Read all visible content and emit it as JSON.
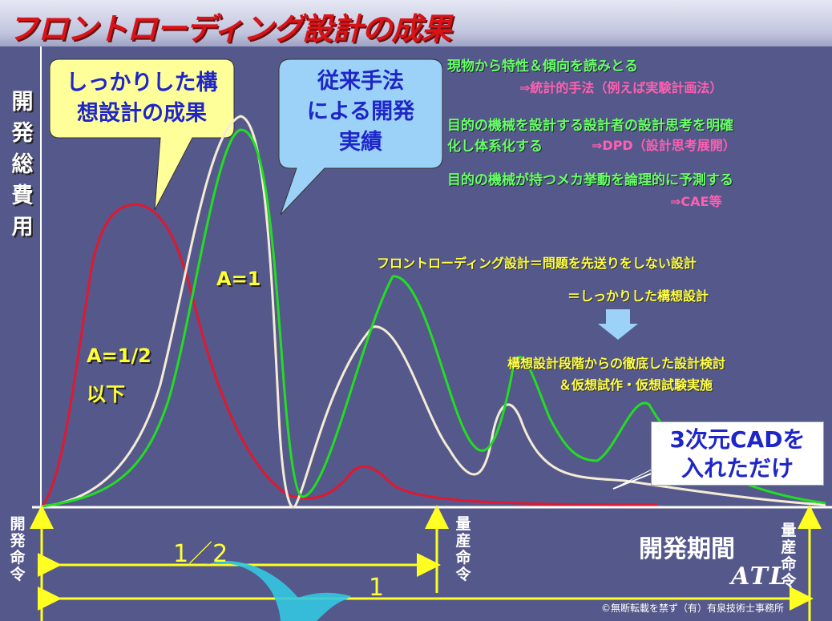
{
  "title": "フロントローディング設計の成果",
  "y_axis_label": [
    "開",
    "発",
    "総",
    "費",
    "用"
  ],
  "x_axis_label": "開発期間",
  "markers": {
    "dev_order": [
      "開",
      "発",
      "命",
      "令"
    ],
    "mass_production_order_1": [
      "量",
      "産",
      "命",
      "令"
    ],
    "mass_production_order_2": [
      "量",
      "産",
      "命",
      "令"
    ]
  },
  "callouts": {
    "conceptual_design": [
      "しっかりした構",
      "想設計の成果"
    ],
    "conventional": [
      "従来手法",
      "による開発",
      "実績"
    ]
  },
  "curve_labels": {
    "a_one": "A=1",
    "a_half": "A=1/2",
    "a_half_sub": "以下"
  },
  "methods": [
    {
      "main": "現物から特性＆傾向を読みとる",
      "sub": "⇒統計的手法（例えば実験計画法）"
    },
    {
      "main": "目的の機械を設計する設計者の設計思考を明確",
      "main2": "化し体系化する",
      "sub": "⇒DPD（設計思考展開）"
    },
    {
      "main": "目的の機械が持つメカ挙動を論理的に予測する",
      "sub": "⇒CAE等"
    }
  ],
  "frontloading": {
    "definition": "フロントローディング設計＝問題を先送りをしない設計",
    "equals": "＝しっかりした構想設計",
    "detail_1": "構想設計段階からの徹底した設計検討",
    "detail_2": "＆仮想試作・仮想試験実施"
  },
  "cad_box": [
    "3次元CADを",
    "入れただけ"
  ],
  "periods": {
    "half": "1／2",
    "full": "1"
  },
  "logo": "ATL",
  "copyright": "©無断転載を禁ず（有）有泉技術士事務所",
  "colors": {
    "background": "#55588a",
    "red_curve": "#e01830",
    "green_curve": "#22dd22",
    "white_curve": "#f4ecd4",
    "axis_arrow": "#ffff22",
    "callout_yellow": "#ffff99",
    "callout_blue": "#9cd2f8",
    "cyan_arrow": "#33c8e0"
  }
}
